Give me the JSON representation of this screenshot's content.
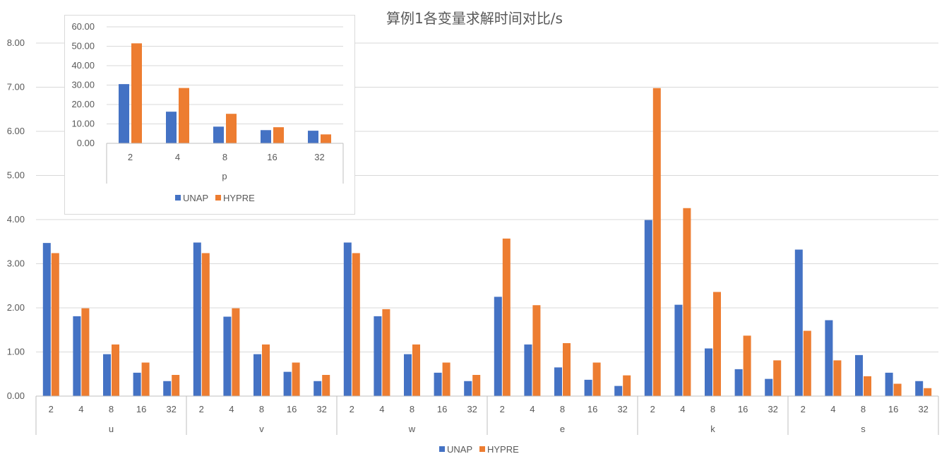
{
  "title": "算例1各变量求解时间对比/s",
  "colors": {
    "UNAP": "#4472c4",
    "HYPRE": "#ed7d31",
    "grid": "#d9d9d9",
    "text": "#595959"
  },
  "chart_data": [
    {
      "type": "bar",
      "title": "算例1各变量求解时间对比/s",
      "ylim": [
        0,
        8
      ],
      "yticks": [
        "0.00",
        "1.00",
        "2.00",
        "3.00",
        "4.00",
        "5.00",
        "6.00",
        "7.00",
        "8.00"
      ],
      "grid": true,
      "legend_position": "bottom",
      "groups": [
        "u",
        "v",
        "w",
        "e",
        "k",
        "s"
      ],
      "sub_categories": [
        "2",
        "4",
        "8",
        "16",
        "32"
      ],
      "series": [
        {
          "name": "UNAP",
          "values": [
            [
              3.47,
              1.81,
              0.95,
              0.53,
              0.34
            ],
            [
              3.48,
              1.8,
              0.95,
              0.55,
              0.34
            ],
            [
              3.48,
              1.81,
              0.95,
              0.53,
              0.34
            ],
            [
              2.25,
              1.17,
              0.65,
              0.37,
              0.23
            ],
            [
              3.99,
              2.07,
              1.08,
              0.61,
              0.39
            ],
            [
              3.32,
              1.72,
              0.93,
              0.53,
              0.34
            ]
          ]
        },
        {
          "name": "HYPRE",
          "values": [
            [
              3.24,
              1.99,
              1.17,
              0.76,
              0.48
            ],
            [
              3.24,
              1.99,
              1.17,
              0.76,
              0.48
            ],
            [
              3.24,
              1.97,
              1.17,
              0.76,
              0.48
            ],
            [
              3.57,
              2.06,
              1.2,
              0.76,
              0.47
            ],
            [
              6.98,
              4.26,
              2.36,
              1.37,
              0.81
            ],
            [
              1.48,
              0.81,
              0.45,
              0.28,
              0.18
            ]
          ]
        }
      ]
    },
    {
      "type": "bar",
      "ylim": [
        0,
        60
      ],
      "yticks": [
        "0.00",
        "10.00",
        "20.00",
        "30.00",
        "40.00",
        "50.00",
        "60.00"
      ],
      "grid": true,
      "legend_position": "bottom",
      "xlabel": "p",
      "categories": [
        "2",
        "4",
        "8",
        "16",
        "32"
      ],
      "series": [
        {
          "name": "UNAP",
          "values": [
            30.5,
            16.3,
            8.6,
            6.8,
            6.5
          ]
        },
        {
          "name": "HYPRE",
          "values": [
            51.5,
            28.5,
            15.2,
            8.3,
            4.6
          ]
        }
      ]
    }
  ]
}
